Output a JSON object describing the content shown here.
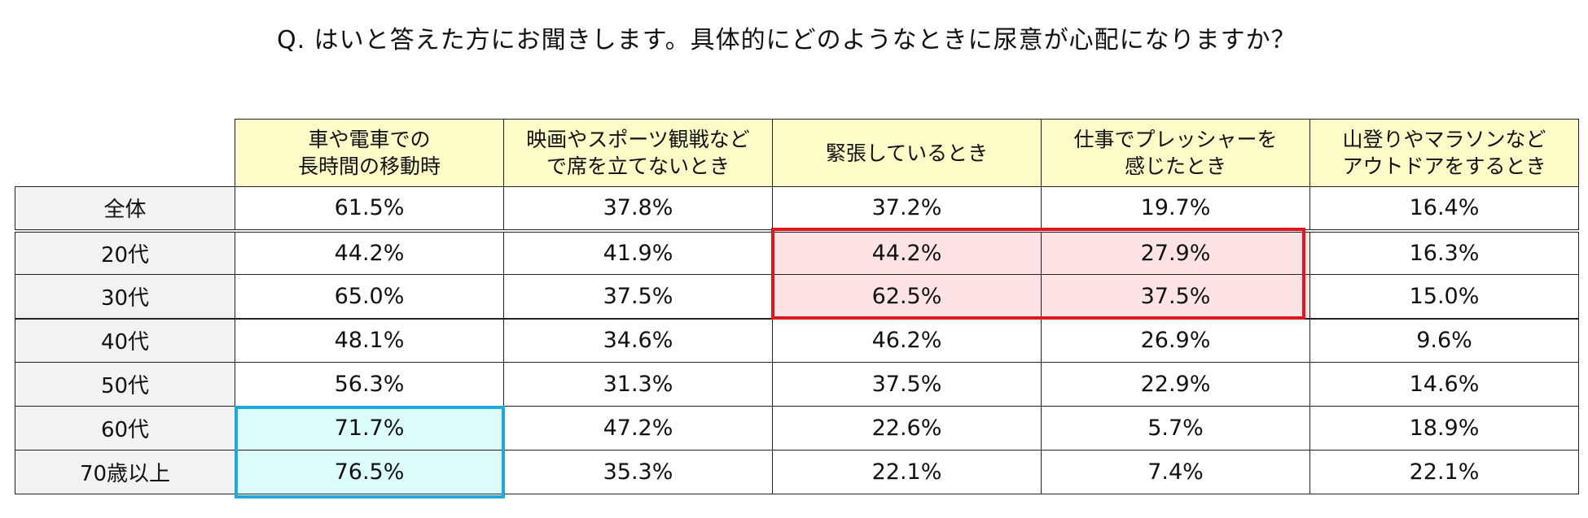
{
  "title": "Q. はいと答えた方にお聞きします。具体的にどのようなときに尿意が心配になりますか？",
  "chart_data": {
    "type": "table",
    "columns": [
      [
        "車や電車での",
        "長時間の移動時"
      ],
      [
        "映画やスポーツ観戦など",
        "で席を立てないとき"
      ],
      [
        "緊張しているとき"
      ],
      [
        "仕事でプレッシャーを",
        "感じたとき"
      ],
      [
        "山登りやマラソンなど",
        "アウトドアをするとき"
      ]
    ],
    "rows": [
      {
        "label": "全体",
        "values": [
          "61.5%",
          "37.8%",
          "37.2%",
          "19.7%",
          "16.4%"
        ]
      },
      {
        "label": "20代",
        "values": [
          "44.2%",
          "41.9%",
          "44.2%",
          "27.9%",
          "16.3%"
        ]
      },
      {
        "label": "30代",
        "values": [
          "65.0%",
          "37.5%",
          "62.5%",
          "37.5%",
          "15.0%"
        ]
      },
      {
        "label": "40代",
        "values": [
          "48.1%",
          "34.6%",
          "46.2%",
          "26.9%",
          "9.6%"
        ]
      },
      {
        "label": "50代",
        "values": [
          "56.3%",
          "31.3%",
          "37.5%",
          "22.9%",
          "14.6%"
        ]
      },
      {
        "label": "60代",
        "values": [
          "71.7%",
          "47.2%",
          "22.6%",
          "5.7%",
          "18.9%"
        ]
      },
      {
        "label": "70歳以上",
        "values": [
          "76.5%",
          "35.3%",
          "22.1%",
          "7.4%",
          "22.1%"
        ]
      }
    ],
    "highlights": [
      {
        "color": "#e0161e",
        "fill": "#fde3e4",
        "rows": [
          1,
          2
        ],
        "cols": [
          2,
          3
        ]
      },
      {
        "color": "#1ea9d9",
        "fill": "#dcfbfb",
        "rows": [
          5,
          6
        ],
        "cols": [
          0
        ]
      }
    ],
    "colors": {
      "header_fill": "#fdfbc8",
      "row_label_fill": "#f2f2f2"
    }
  }
}
